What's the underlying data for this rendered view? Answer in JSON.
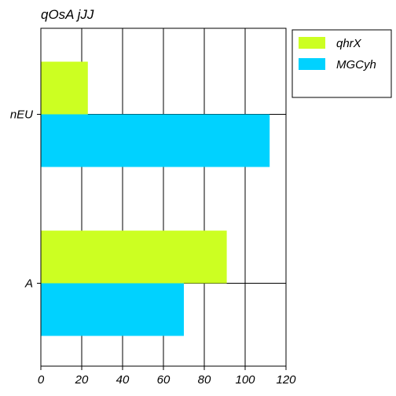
{
  "chart_data": {
    "type": "bar",
    "orientation": "horizontal",
    "title": "qOsA jJJ",
    "xlabel": "",
    "ylabel": "",
    "categories": [
      "nEU",
      "A"
    ],
    "series": [
      {
        "name": "qhrX",
        "values": [
          23,
          91
        ],
        "color": "#ccff22"
      },
      {
        "name": "MGCyh",
        "values": [
          112,
          70
        ],
        "color": "#00d2ff"
      }
    ],
    "xlim": [
      0,
      120
    ],
    "xticks": [
      0,
      20,
      40,
      60,
      80,
      100,
      120
    ],
    "grid": true,
    "legend_position": "outside-top-right"
  }
}
